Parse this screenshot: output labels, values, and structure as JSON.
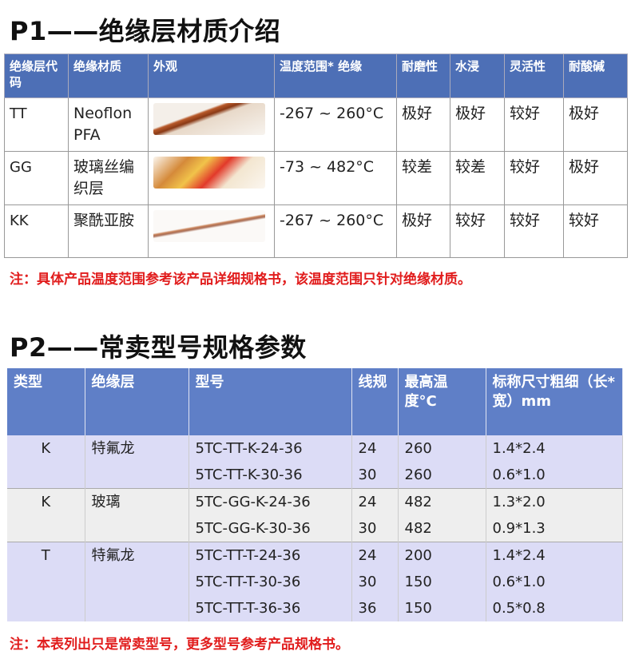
{
  "p1": {
    "title": "P1——绝缘层材质介绍",
    "headers": [
      "绝缘层代码",
      "绝缘材质",
      "外观",
      "温度范围* 绝缘",
      "耐磨性",
      "水浸",
      "灵活性",
      "耐酸碱"
    ],
    "rows": [
      {
        "code": "TT",
        "material": "Neoflon PFA",
        "image": "tt-wire-image",
        "temp": "-267 ~ 260°C",
        "wear": "极好",
        "water": "极好",
        "flex": "较好",
        "acid": "极好"
      },
      {
        "code": "GG",
        "material": "玻璃丝编织层",
        "image": "gg-wire-image",
        "temp": "-73 ~ 482°C",
        "wear": "较差",
        "water": "较差",
        "flex": "较好",
        "acid": "极好"
      },
      {
        "code": "KK",
        "material": "聚酰亚胺",
        "image": "kk-wire-image",
        "temp": "-267 ~ 260°C",
        "wear": "极好",
        "water": "较好",
        "flex": "较好",
        "acid": "较好"
      }
    ],
    "note": "注：具体产品温度范围参考该产品详细规格书，该温度范围只针对绝缘材质。"
  },
  "p2": {
    "title": "P2——常卖型号规格参数",
    "headers": [
      "类型",
      "绝缘层",
      "型号",
      "线规",
      "最高温度°C",
      "标称尺寸粗细（长*宽）mm"
    ],
    "rows": [
      {
        "type": "K",
        "insulation": "特氟龙",
        "model": "5TC-TT-K-24-36",
        "gauge": "24",
        "max_temp": "260",
        "size": "1.4*2.4"
      },
      {
        "type": "",
        "insulation": "",
        "model": "5TC-TT-K-30-36",
        "gauge": "30",
        "max_temp": "260",
        "size": "0.6*1.0"
      },
      {
        "type": "K",
        "insulation": "玻璃",
        "model": "5TC-GG-K-24-36",
        "gauge": "24",
        "max_temp": "482",
        "size": "1.3*2.0"
      },
      {
        "type": "",
        "insulation": "",
        "model": "5TC-GG-K-30-36",
        "gauge": "30",
        "max_temp": "482",
        "size": "0.9*1.3"
      },
      {
        "type": "T",
        "insulation": "特氟龙",
        "model": "5TC-TT-T-24-36",
        "gauge": "24",
        "max_temp": "200",
        "size": "1.4*2.4"
      },
      {
        "type": "",
        "insulation": "",
        "model": "5TC-TT-T-30-36",
        "gauge": "30",
        "max_temp": "150",
        "size": "0.6*1.0"
      },
      {
        "type": "",
        "insulation": "",
        "model": "5TC-TT-T-36-36",
        "gauge": "36",
        "max_temp": "150",
        "size": "0.5*0.8"
      }
    ],
    "note": "注：本表列出只是常卖型号，更多型号参考产品规格书。"
  }
}
